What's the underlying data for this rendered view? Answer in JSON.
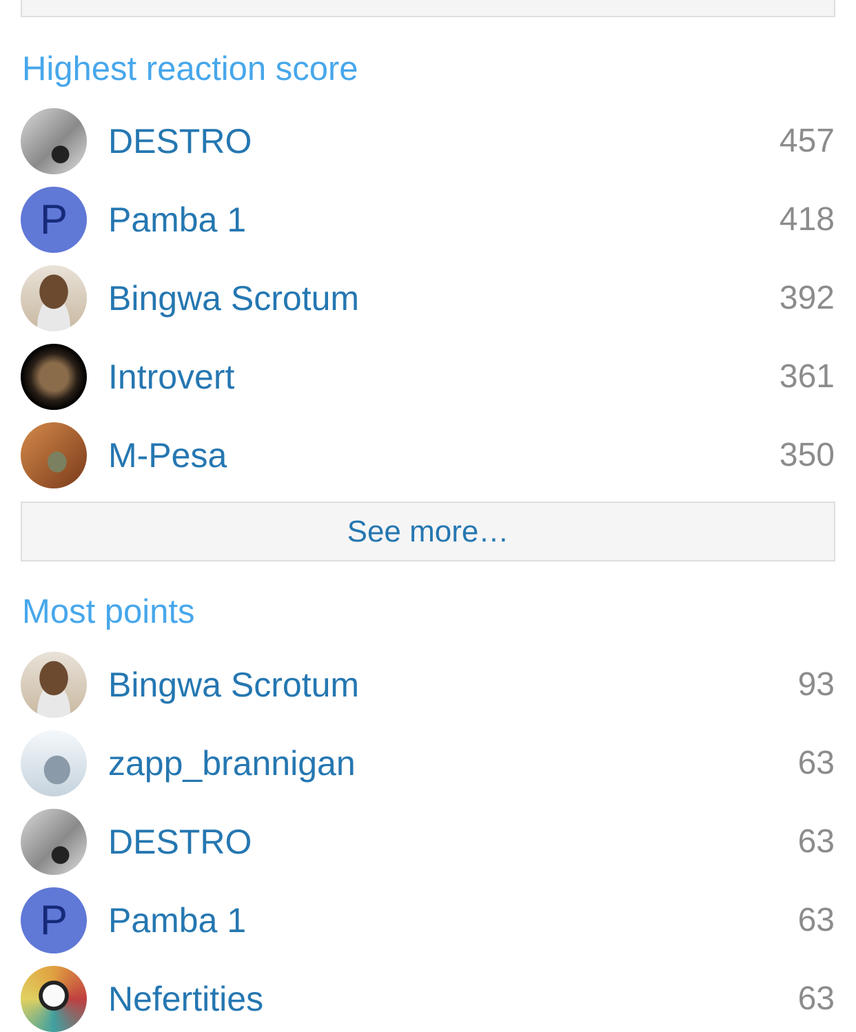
{
  "reaction": {
    "title": "Highest reaction score",
    "members": [
      {
        "name": "DESTRO",
        "value": "457",
        "avatar": "destro"
      },
      {
        "name": "Pamba 1",
        "value": "418",
        "avatar": "letter",
        "letter": "P"
      },
      {
        "name": "Bingwa Scrotum",
        "value": "392",
        "avatar": "bingwa"
      },
      {
        "name": "Introvert",
        "value": "361",
        "avatar": "intro"
      },
      {
        "name": "M-Pesa",
        "value": "350",
        "avatar": "mpesa"
      }
    ],
    "see_more": "See more…"
  },
  "points": {
    "title": "Most points",
    "members": [
      {
        "name": "Bingwa Scrotum",
        "value": "93",
        "avatar": "bingwa"
      },
      {
        "name": "zapp_brannigan",
        "value": "63",
        "avatar": "zapp"
      },
      {
        "name": "DESTRO",
        "value": "63",
        "avatar": "destro"
      },
      {
        "name": "Pamba 1",
        "value": "63",
        "avatar": "letter",
        "letter": "P"
      },
      {
        "name": "Nefertities",
        "value": "63",
        "avatar": "nef"
      }
    ]
  },
  "colors": {
    "heading": "#47a7eb",
    "link": "#2577b1",
    "value": "#8c8c8c",
    "letter_avatar": "#6078d6"
  }
}
